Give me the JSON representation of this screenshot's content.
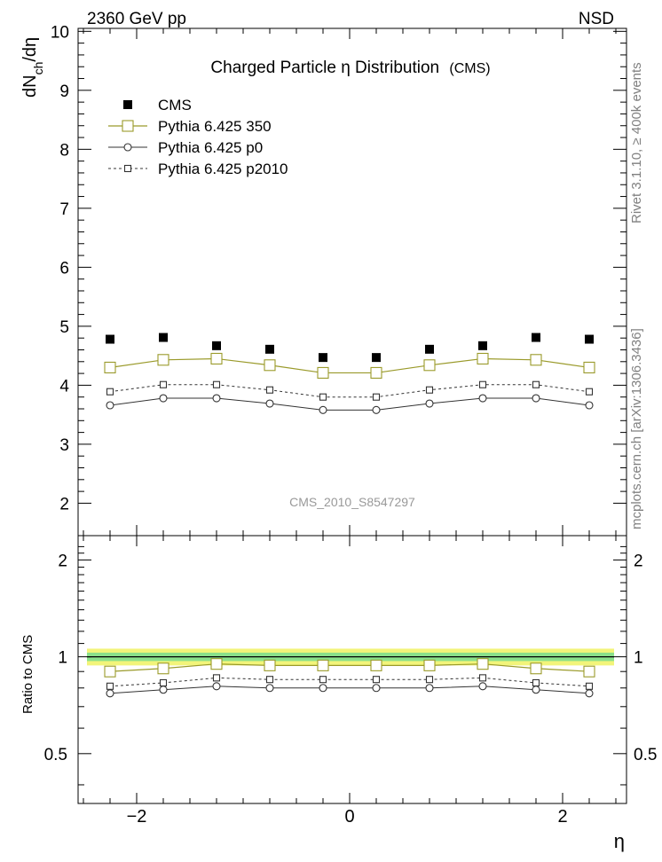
{
  "header": {
    "energy_label": "2360 GeV pp",
    "process_label": "NSD"
  },
  "side_labels": {
    "version": "Rivet 3.1.10, ≥ 400k events",
    "source": "mcplots.cern.ch [arXiv:1306.3436]"
  },
  "watermark": "CMS_2010_S8547297",
  "colors": {
    "cms": "#000000",
    "p350": "#9a9a2a",
    "p0": "#333333",
    "p2010": "#333333",
    "band_outer": "#f2f47a",
    "band_inner": "#8ae08a"
  },
  "chart_data": [
    {
      "type": "line",
      "title": "Charged Particle  η Distribution",
      "title_suffix": "(CMS)",
      "ylabel": "dN_ch/dη",
      "xlim": [
        -2.55,
        2.6
      ],
      "ylim": [
        1.45,
        10.05
      ],
      "yticks": [
        2,
        3,
        4,
        5,
        6,
        7,
        8,
        9,
        10
      ],
      "x": [
        -2.25,
        -1.75,
        -1.25,
        -0.75,
        -0.25,
        0.25,
        0.75,
        1.25,
        1.75,
        2.25
      ],
      "series": [
        {
          "name": "CMS",
          "style": "data",
          "values": [
            4.78,
            4.81,
            4.67,
            4.61,
            4.47,
            4.47,
            4.61,
            4.67,
            4.81,
            4.78
          ]
        },
        {
          "name": "Pythia 6.425 350",
          "style": "solid",
          "marker": "square-open",
          "values": [
            4.3,
            4.43,
            4.45,
            4.34,
            4.21,
            4.21,
            4.34,
            4.45,
            4.43,
            4.3
          ]
        },
        {
          "name": "Pythia 6.425 p0",
          "style": "solid",
          "marker": "circle-open",
          "values": [
            3.66,
            3.78,
            3.78,
            3.69,
            3.58,
            3.58,
            3.69,
            3.78,
            3.78,
            3.66
          ]
        },
        {
          "name": "Pythia 6.425 p2010",
          "style": "dashed",
          "marker": "square-small",
          "values": [
            3.89,
            4.01,
            4.01,
            3.92,
            3.8,
            3.8,
            3.92,
            4.01,
            4.01,
            3.89
          ]
        }
      ]
    },
    {
      "type": "line",
      "ylabel": "Ratio to CMS",
      "xlabel": "η",
      "xlim": [
        -2.55,
        2.6
      ],
      "ylim": [
        0.35,
        2.38
      ],
      "y_scale": "log",
      "yticks": [
        0.5,
        1,
        2
      ],
      "xticks": [
        -2,
        0,
        2
      ],
      "band": {
        "outer": [
          0.94,
          1.06
        ],
        "inner": [
          0.97,
          1.03
        ]
      },
      "x": [
        -2.25,
        -1.75,
        -1.25,
        -0.75,
        -0.25,
        0.25,
        0.75,
        1.25,
        1.75,
        2.25
      ],
      "series": [
        {
          "name": "Pythia 6.425 350",
          "style": "solid",
          "marker": "square-open",
          "values": [
            0.9,
            0.92,
            0.95,
            0.94,
            0.94,
            0.94,
            0.94,
            0.95,
            0.92,
            0.9
          ]
        },
        {
          "name": "Pythia 6.425 p0",
          "style": "solid",
          "marker": "circle-open",
          "values": [
            0.77,
            0.79,
            0.81,
            0.8,
            0.8,
            0.8,
            0.8,
            0.81,
            0.79,
            0.77
          ]
        },
        {
          "name": "Pythia 6.425 p2010",
          "style": "dashed",
          "marker": "square-small",
          "values": [
            0.81,
            0.83,
            0.86,
            0.85,
            0.85,
            0.85,
            0.85,
            0.86,
            0.83,
            0.81
          ]
        }
      ]
    }
  ]
}
